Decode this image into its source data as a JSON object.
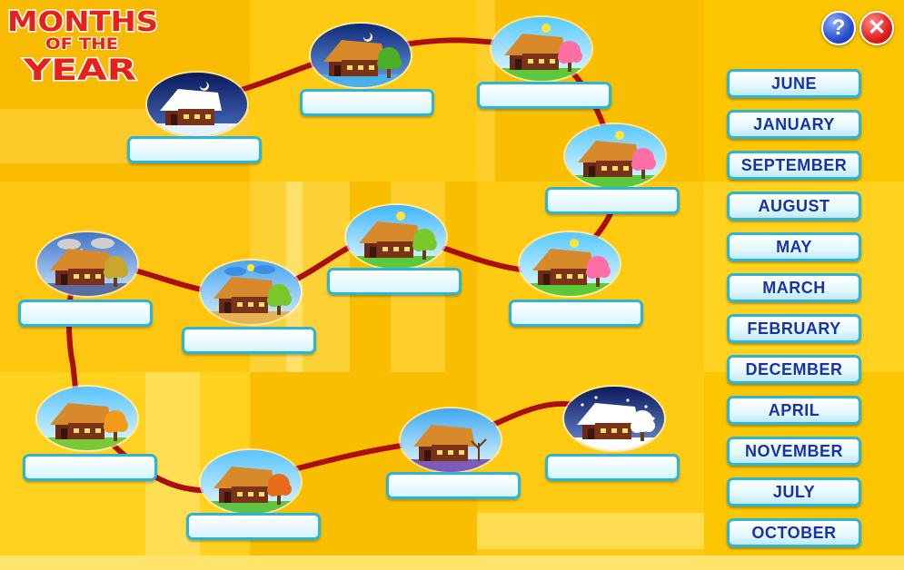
{
  "title": {
    "line1": "MONTHS",
    "line2": "OF THE",
    "line3": "YEAR"
  },
  "controls": {
    "help_glyph": "?",
    "close_glyph": "✕"
  },
  "month_cards": [
    "JUNE",
    "JANUARY",
    "SEPTEMBER",
    "AUGUST",
    "MAY",
    "MARCH",
    "FEBRUARY",
    "DECEMBER",
    "APRIL",
    "NOVEMBER",
    "JULY",
    "OCTOBER"
  ],
  "colors": {
    "background": "#fcc400",
    "path": "#a90f0f",
    "slot_border": "#2bb6d8",
    "card_text": "#1633a8"
  },
  "scenes": [
    {
      "id": 1,
      "season": "winter-night"
    },
    {
      "id": 2,
      "season": "winter-thaw"
    },
    {
      "id": 3,
      "season": "spring-blossom"
    },
    {
      "id": 4,
      "season": "spring-blossom"
    },
    {
      "id": 5,
      "season": "spring-blossom"
    },
    {
      "id": 6,
      "season": "summer"
    },
    {
      "id": 7,
      "season": "summer-rain"
    },
    {
      "id": 8,
      "season": "autumn-storm"
    },
    {
      "id": 9,
      "season": "autumn-leaves"
    },
    {
      "id": 10,
      "season": "autumn-late"
    },
    {
      "id": 11,
      "season": "autumn-bare"
    },
    {
      "id": 12,
      "season": "winter-snow"
    }
  ]
}
